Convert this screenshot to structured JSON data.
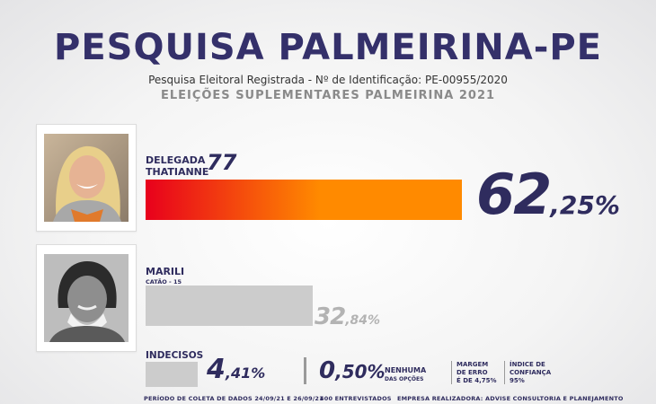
{
  "header": {
    "title": "PESQUISA PALMEIRINA-PE",
    "subtitle": "Pesquisa Eleitoral Registrada - Nº de Identificação: PE-00955/2020",
    "election": "ELEIÇÕES SUPLEMENTARES PALMEIRINA 2021"
  },
  "chart_data": {
    "type": "bar",
    "title": "",
    "xlabel": "",
    "ylabel": "",
    "ylim": [
      0,
      100
    ],
    "categories": [
      "DELEGADA THATIANNE",
      "MARILI",
      "INDECISOS",
      "NENHUMA DAS OPÇÕES"
    ],
    "values": [
      62.25,
      32.84,
      4.41,
      0.5
    ],
    "value_labels": [
      {
        "int": "62",
        "dec": ",25%"
      },
      {
        "int": "32",
        "dec": ",84%"
      },
      {
        "int": "4",
        "dec": ",41%"
      },
      {
        "int": "0",
        "dec": ",50%"
      }
    ],
    "colors": [
      "#ff8a00",
      "#cccccc",
      "#cccccc",
      ""
    ],
    "gradient_start": "#e8001c"
  },
  "candidates": [
    {
      "name_line1": "DELEGADA",
      "name_line2": "THATIANNE",
      "number": "77"
    },
    {
      "name_line1": "MARILI",
      "name_line2": "CATÃO - 15"
    }
  ],
  "undecided": {
    "label": "INDECISOS"
  },
  "none": {
    "label_line1": "NENHUMA",
    "label_line2": "DAS OPÇÕES"
  },
  "margin": {
    "line1": "MARGEM",
    "line2": "DE ERRO",
    "line3": "É DE 4,75%"
  },
  "confidence": {
    "line1": "ÍNDICE DE",
    "line2": "CONFIANÇA",
    "line3": "95%"
  },
  "footer": {
    "period": "PERÍODO DE COLETA DE DADOS 24/09/21 E 26/09/21",
    "interviewees": "400 ENTREVISTADOS",
    "company": "EMPRESA REALIZADORA: ADVISE  CONSULTORIA E PLANEJAMENTO"
  }
}
